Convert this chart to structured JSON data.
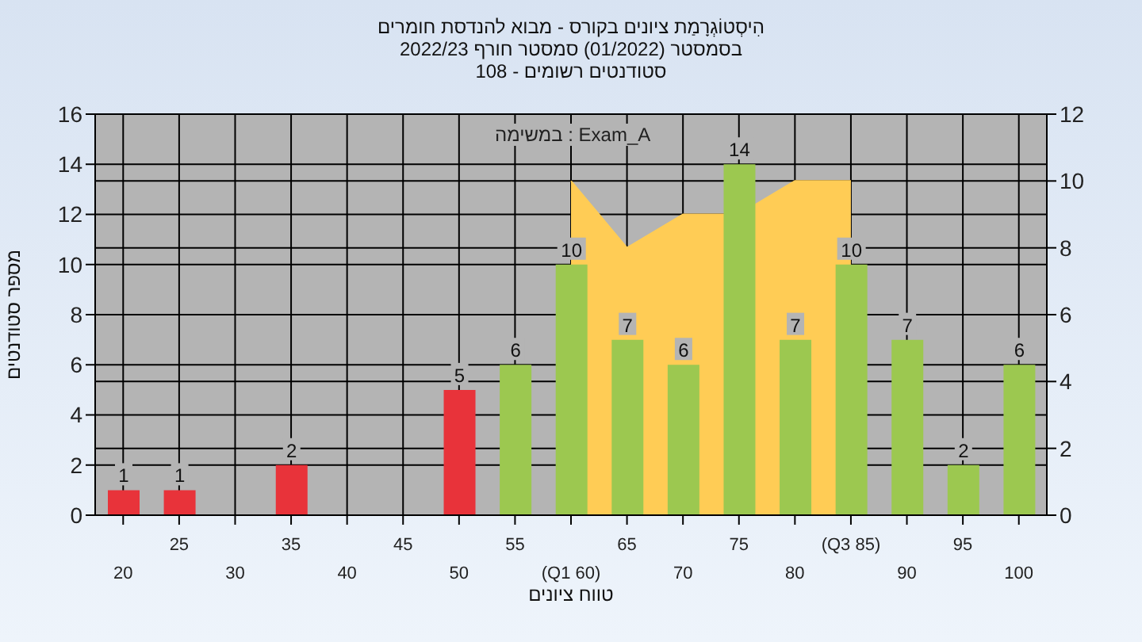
{
  "chart_data": {
    "type": "bar",
    "title": "הִיסְטוֹגְרָמַת ציונים בקורס - מבוא להנדסת חומרים",
    "subtitle": "בסמסטר  (01/2022)  סמסטר חורף 2022/23\nסטודנטים רשומים - 108",
    "xlabel": "טווח ציונים",
    "ylabel": "מספר סטודנטים",
    "categories": [
      "20",
      "25",
      "30",
      "35",
      "40",
      "45",
      "50",
      "55",
      "(Q1 60)",
      "65",
      "70",
      "75",
      "80",
      "(Q3 85)",
      "90",
      "95",
      "100"
    ],
    "series": [
      {
        "type": "area",
        "axis": "y2",
        "color": "#ffcc55",
        "values": [
          null,
          null,
          null,
          null,
          null,
          null,
          null,
          null,
          10,
          8,
          9,
          9,
          10,
          10,
          null,
          null,
          null
        ]
      },
      {
        "color": "#9cc850",
        "value_labels": [
          "1",
          "1",
          null,
          "2",
          null,
          null,
          "5",
          "6",
          "10",
          "7",
          "6",
          "14",
          "7",
          "10",
          "7",
          "2",
          "6"
        ],
        "colors": [
          "#e8333a",
          "#e8333a",
          "#e8333a",
          "#e8333a",
          "#e8333a",
          "#e8333a",
          "#e8333a",
          "#9cc850",
          "#9cc850",
          "#9cc850",
          "#9cc850",
          "#9cc850",
          "#9cc850",
          "#9cc850",
          "#9cc850",
          "#9cc850",
          "#9cc850"
        ],
        "values": [
          1,
          1,
          null,
          2,
          null,
          null,
          5,
          6,
          10,
          7,
          6,
          14,
          7,
          10,
          7,
          2,
          6
        ]
      }
    ],
    "ylim": [
      0,
      16
    ],
    "yticks": [
      0,
      2,
      4,
      6,
      8,
      10,
      12,
      14,
      16
    ],
    "y2lim": [
      0,
      12
    ],
    "y2ticks": [
      0,
      2,
      4,
      6,
      8,
      10,
      12
    ],
    "grid": true,
    "annotations": [
      "במשימה : Exam_A"
    ]
  }
}
